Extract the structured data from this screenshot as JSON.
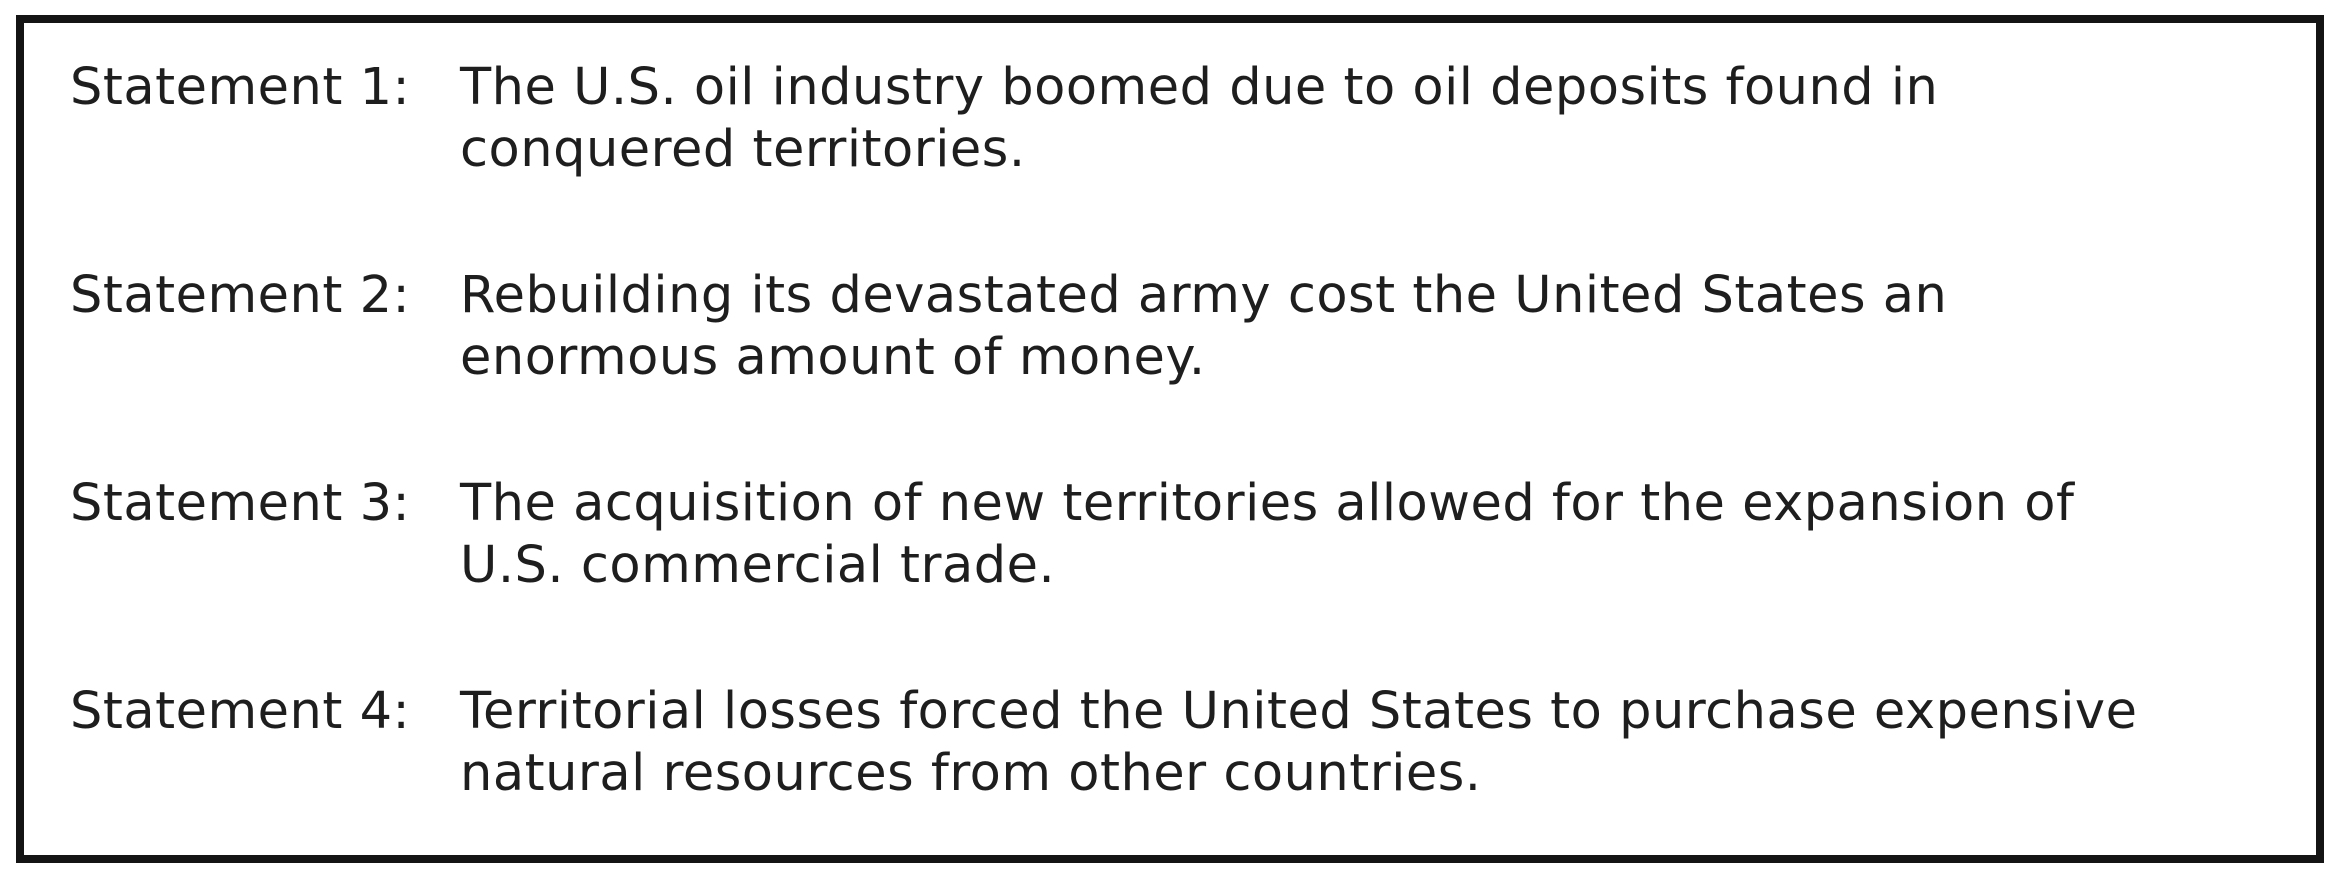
{
  "colors": {
    "border": "#141414",
    "text": "#1e1e1e",
    "background": "#ffffff"
  },
  "panel": {
    "statements": [
      {
        "label": "Statement 1:",
        "lines": [
          "The U.S. oil industry boomed due to oil deposits found in",
          "conquered territories."
        ]
      },
      {
        "label": "Statement 2:",
        "lines": [
          "Rebuilding its devastated army cost the United States an",
          "enormous amount of money."
        ]
      },
      {
        "label": "Statement 3:",
        "lines": [
          "The acquisition of new territories allowed for the expansion of",
          "U.S. commercial trade."
        ]
      },
      {
        "label": "Statement 4:",
        "lines": [
          "Territorial losses forced the United States to purchase expensive",
          "natural resources from other countries."
        ]
      }
    ]
  }
}
